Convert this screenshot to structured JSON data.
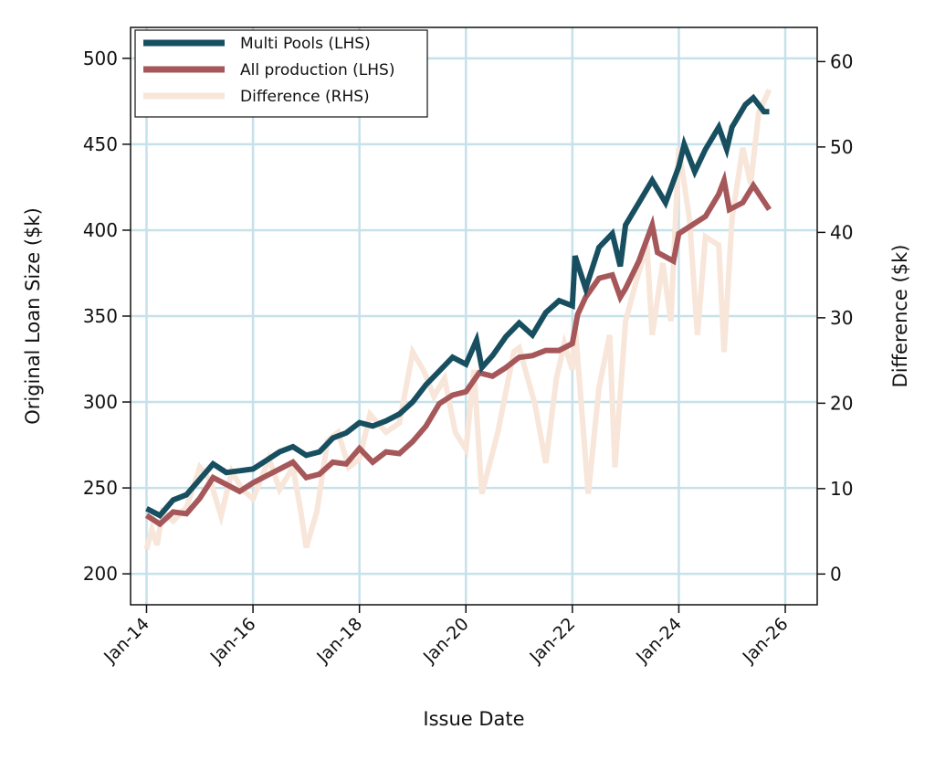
{
  "chart_data": {
    "type": "line",
    "title": "",
    "xlabel": "Issue Date",
    "ylabel": "Original Loan Size ($k)",
    "y2label": "Difference ($k)",
    "xlim": [
      2013.7,
      2026.6
    ],
    "ylim": [
      182,
      518
    ],
    "y2lim": [
      -3.6,
      64
    ],
    "grid": true,
    "legend_position": "top-left",
    "x_ticks": [
      {
        "value": 2014,
        "label": "Jan-14"
      },
      {
        "value": 2016,
        "label": "Jan-16"
      },
      {
        "value": 2018,
        "label": "Jan-18"
      },
      {
        "value": 2020,
        "label": "Jan-20"
      },
      {
        "value": 2022,
        "label": "Jan-22"
      },
      {
        "value": 2024,
        "label": "Jan-24"
      },
      {
        "value": 2026,
        "label": "Jan-26"
      }
    ],
    "y_ticks": [
      200,
      250,
      300,
      350,
      400,
      450,
      500
    ],
    "y2_ticks": [
      0,
      10,
      20,
      30,
      40,
      50,
      60
    ],
    "series": [
      {
        "name": "Difference (RHS)",
        "axis": "right",
        "color": "#f7e6d9",
        "x": [
          2014.0,
          2014.1,
          2014.2,
          2014.3,
          2014.5,
          2014.75,
          2015.0,
          2015.2,
          2015.4,
          2015.6,
          2015.8,
          2016.0,
          2016.3,
          2016.5,
          2016.75,
          2016.9,
          2017.0,
          2017.2,
          2017.4,
          2017.6,
          2017.8,
          2018.0,
          2018.2,
          2018.5,
          2018.75,
          2019.0,
          2019.2,
          2019.4,
          2019.6,
          2019.8,
          2020.0,
          2020.15,
          2020.3,
          2020.6,
          2020.9,
          2021.0,
          2021.3,
          2021.5,
          2021.7,
          2021.85,
          2022.0,
          2022.05,
          2022.3,
          2022.5,
          2022.7,
          2022.8,
          2023.0,
          2023.2,
          2023.4,
          2023.5,
          2023.7,
          2023.85,
          2024.0,
          2024.2,
          2024.35,
          2024.5,
          2024.75,
          2024.85,
          2025.0,
          2025.2,
          2025.35,
          2025.5,
          2025.7
        ],
        "values": [
          2.9,
          5.2,
          3.4,
          7.3,
          6.2,
          7.8,
          12.5,
          10.9,
          6.8,
          12.0,
          9.9,
          8.8,
          13.5,
          9.9,
          12.5,
          7.3,
          3.1,
          7.3,
          15.6,
          16.6,
          12.5,
          13.5,
          18.7,
          16.6,
          17.7,
          26.0,
          23.9,
          20.8,
          22.9,
          16.6,
          14.6,
          23.9,
          9.4,
          16.6,
          26.0,
          26.5,
          19.8,
          13.0,
          22.9,
          27.0,
          23.9,
          29.1,
          9.4,
          21.8,
          28.0,
          12.5,
          29.6,
          34.3,
          38.5,
          28.0,
          36.4,
          29.6,
          49.9,
          41.6,
          28.0,
          39.5,
          38.5,
          26.0,
          41.6,
          49.9,
          45.7,
          54.0,
          56.7
        ]
      },
      {
        "name": "All production (LHS)",
        "axis": "left",
        "color": "#a6575a",
        "x": [
          2014.0,
          2014.25,
          2014.5,
          2014.75,
          2015.0,
          2015.25,
          2015.5,
          2015.75,
          2016.0,
          2016.25,
          2016.5,
          2016.75,
          2017.0,
          2017.25,
          2017.5,
          2017.75,
          2018.0,
          2018.25,
          2018.5,
          2018.75,
          2019.0,
          2019.25,
          2019.5,
          2019.75,
          2020.0,
          2020.25,
          2020.5,
          2020.75,
          2021.0,
          2021.25,
          2021.5,
          2021.75,
          2022.0,
          2022.1,
          2022.25,
          2022.5,
          2022.75,
          2022.9,
          2023.0,
          2023.25,
          2023.5,
          2023.6,
          2023.9,
          2024.0,
          2024.25,
          2024.5,
          2024.75,
          2024.85,
          2024.95,
          2025.2,
          2025.4,
          2025.7
        ],
        "values": [
          234,
          229,
          236,
          235,
          244,
          256,
          252,
          248,
          253,
          257,
          261,
          265,
          256,
          258,
          265,
          264,
          273,
          265,
          271,
          270,
          277,
          286,
          299,
          304,
          306,
          317,
          315,
          320,
          326,
          327,
          330,
          330,
          334,
          351,
          361,
          372,
          374,
          361,
          366,
          382,
          403,
          387,
          382,
          398,
          403,
          408,
          421,
          429,
          412,
          416,
          426,
          412
        ]
      },
      {
        "name": "Multi Pools (LHS)",
        "axis": "left",
        "color": "#174f60",
        "x": [
          2014.0,
          2014.25,
          2014.5,
          2014.75,
          2015.0,
          2015.25,
          2015.5,
          2015.75,
          2016.0,
          2016.25,
          2016.5,
          2016.75,
          2017.0,
          2017.25,
          2017.5,
          2017.75,
          2018.0,
          2018.25,
          2018.5,
          2018.75,
          2019.0,
          2019.25,
          2019.5,
          2019.75,
          2020.0,
          2020.2,
          2020.3,
          2020.5,
          2020.75,
          2021.0,
          2021.25,
          2021.5,
          2021.75,
          2022.0,
          2022.05,
          2022.25,
          2022.5,
          2022.75,
          2022.9,
          2023.0,
          2023.25,
          2023.5,
          2023.75,
          2024.0,
          2024.1,
          2024.3,
          2024.5,
          2024.75,
          2024.9,
          2025.0,
          2025.25,
          2025.4,
          2025.6,
          2025.7
        ],
        "values": [
          238,
          234,
          243,
          246,
          255,
          264,
          259,
          260,
          261,
          266,
          271,
          274,
          269,
          271,
          279,
          282,
          288,
          286,
          289,
          293,
          300,
          310,
          318,
          326,
          322,
          336,
          320,
          327,
          338,
          346,
          339,
          352,
          359,
          356,
          385,
          366,
          390,
          398,
          379,
          403,
          416,
          429,
          416,
          437,
          450,
          434,
          447,
          460,
          447,
          460,
          473,
          477,
          469,
          469
        ]
      }
    ],
    "legend": [
      "Multi Pools (LHS)",
      "All production (LHS)",
      "Difference (RHS)"
    ]
  }
}
